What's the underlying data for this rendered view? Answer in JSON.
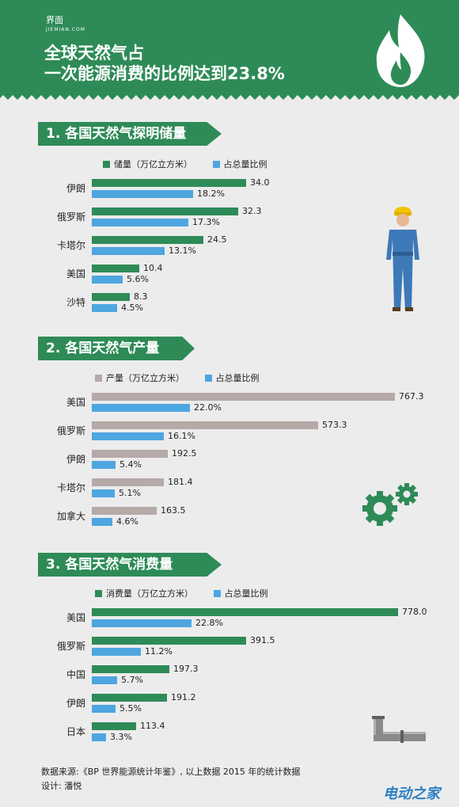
{
  "brand": {
    "name": "界面",
    "sub": "JIEMIAN.COM"
  },
  "header": {
    "title_line1": "全球天然气占",
    "title_line2": "一次能源消费的比例达到23.8%"
  },
  "chart_data": [
    {
      "type": "bar",
      "title": "1. 各国天然气探明储量",
      "categories": [
        "伊朗",
        "俄罗斯",
        "卡塔尔",
        "美国",
        "沙特"
      ],
      "series": [
        {
          "name": "储量（万亿立方米）",
          "color": "#2e8b57",
          "values": [
            34.0,
            32.3,
            24.5,
            10.4,
            8.3
          ],
          "labels": [
            "34.0",
            "32.3",
            "24.5",
            "10.4",
            "8.3"
          ]
        },
        {
          "name": "占总量比例",
          "color": "#4ea6e0",
          "values": [
            18.2,
            17.3,
            13.1,
            5.6,
            4.5
          ],
          "labels": [
            "18.2%",
            "17.3%",
            "13.1%",
            "5.6%",
            "4.5%"
          ]
        }
      ]
    },
    {
      "type": "bar",
      "title": "2. 各国天然气产量",
      "categories": [
        "美国",
        "俄罗斯",
        "伊朗",
        "卡塔尔",
        "加拿大"
      ],
      "series": [
        {
          "name": "产量（万亿立方米）",
          "color": "#b5aaa8",
          "values": [
            767.3,
            573.3,
            192.5,
            181.4,
            163.5
          ],
          "labels": [
            "767.3",
            "573.3",
            "192.5",
            "181.4",
            "163.5"
          ]
        },
        {
          "name": "占总量比例",
          "color": "#4ea6e0",
          "values": [
            22.0,
            16.1,
            5.4,
            5.1,
            4.6
          ],
          "labels": [
            "22.0%",
            "16.1%",
            "5.4%",
            "5.1%",
            "4.6%"
          ]
        }
      ]
    },
    {
      "type": "bar",
      "title": "3. 各国天然气消费量",
      "categories": [
        "美国",
        "俄罗斯",
        "中国",
        "伊朗",
        "日本"
      ],
      "series": [
        {
          "name": "消费量（万亿立方米）",
          "color": "#2e8b57",
          "values": [
            778.0,
            391.5,
            197.3,
            191.2,
            113.4
          ],
          "labels": [
            "778.0",
            "391.5",
            "197.3",
            "191.2",
            "113.4"
          ]
        },
        {
          "name": "占总量比例",
          "color": "#4ea6e0",
          "values": [
            22.8,
            11.2,
            5.7,
            5.5,
            3.3
          ],
          "labels": [
            "22.8%",
            "11.2%",
            "5.7%",
            "5.5%",
            "3.3%"
          ]
        }
      ]
    }
  ],
  "footer": {
    "source": "数据来源:《BP 世界能源统计年鉴》, 以上数据 2015 年的统计数据",
    "designer": "设计: 潘悦"
  },
  "watermark": "电动之家"
}
